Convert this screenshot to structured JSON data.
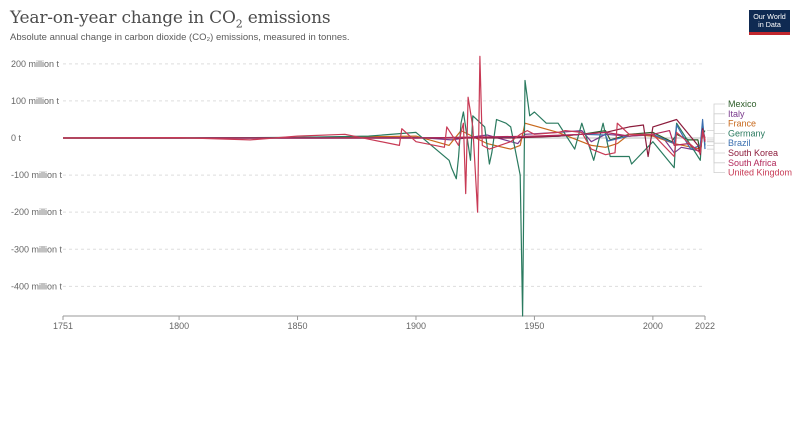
{
  "header": {
    "title_main": "Year-on-year change in CO",
    "title_sub": "2",
    "title_rest": " emissions",
    "subtitle": "Absolute annual change in carbon dioxide (CO₂) emissions, measured in tonnes."
  },
  "logo": {
    "line1": "Our World",
    "line2": "in Data"
  },
  "chart_data": {
    "type": "line",
    "title": "Year-on-year change in CO₂ emissions",
    "subtitle": "Absolute annual change in carbon dioxide (CO₂) emissions, measured in tonnes.",
    "xlabel": "",
    "ylabel": "",
    "xlim": [
      1751,
      2022
    ],
    "ylim": [
      -480000000,
      240000000
    ],
    "x_ticks": [
      1751,
      1800,
      1850,
      1900,
      1950,
      2000,
      2022
    ],
    "y_ticks": [
      {
        "value": 200000000,
        "label": "200 million t"
      },
      {
        "value": 100000000,
        "label": "100 million t"
      },
      {
        "value": 0,
        "label": "0 t"
      },
      {
        "value": -100000000,
        "label": "-100 million t"
      },
      {
        "value": -200000000,
        "label": "-200 million t"
      },
      {
        "value": -300000000,
        "label": "-300 million t"
      },
      {
        "value": -400000000,
        "label": "-400 million t"
      }
    ],
    "grid": true,
    "legend_placement": "right",
    "series": [
      {
        "name": "Mexico",
        "color": "#2e5e2a",
        "values": [
          [
            1751,
            0
          ],
          [
            1900,
            0
          ],
          [
            1920,
            2000000
          ],
          [
            1940,
            3000000
          ],
          [
            1960,
            5000000
          ],
          [
            1970,
            10000000
          ],
          [
            1980,
            20000000
          ],
          [
            1982,
            -5000000
          ],
          [
            1990,
            10000000
          ],
          [
            2000,
            15000000
          ],
          [
            2008,
            -10000000
          ],
          [
            2010,
            10000000
          ],
          [
            2015,
            -5000000
          ],
          [
            2019,
            -5000000
          ],
          [
            2020,
            -40000000
          ],
          [
            2021,
            10000000
          ],
          [
            2022,
            20000000
          ]
        ]
      },
      {
        "name": "Italy",
        "color": "#7a3a8c",
        "values": [
          [
            1751,
            0
          ],
          [
            1860,
            0
          ],
          [
            1900,
            2000000
          ],
          [
            1915,
            -5000000
          ],
          [
            1930,
            8000000
          ],
          [
            1943,
            -15000000
          ],
          [
            1946,
            10000000
          ],
          [
            1960,
            15000000
          ],
          [
            1970,
            20000000
          ],
          [
            1974,
            -10000000
          ],
          [
            1980,
            10000000
          ],
          [
            1990,
            5000000
          ],
          [
            2000,
            8000000
          ],
          [
            2005,
            -5000000
          ],
          [
            2009,
            -40000000
          ],
          [
            2012,
            -25000000
          ],
          [
            2020,
            -35000000
          ],
          [
            2021,
            25000000
          ],
          [
            2022,
            0
          ]
        ]
      },
      {
        "name": "France",
        "color": "#c8691c",
        "values": [
          [
            1751,
            0
          ],
          [
            1820,
            0
          ],
          [
            1860,
            2000000
          ],
          [
            1900,
            5000000
          ],
          [
            1914,
            -20000000
          ],
          [
            1919,
            20000000
          ],
          [
            1930,
            -15000000
          ],
          [
            1940,
            -30000000
          ],
          [
            1944,
            -20000000
          ],
          [
            1946,
            40000000
          ],
          [
            1960,
            15000000
          ],
          [
            1974,
            -20000000
          ],
          [
            1980,
            -25000000
          ],
          [
            1985,
            -15000000
          ],
          [
            1990,
            10000000
          ],
          [
            2000,
            5000000
          ],
          [
            2009,
            -15000000
          ],
          [
            2020,
            -30000000
          ],
          [
            2021,
            25000000
          ],
          [
            2022,
            -5000000
          ]
        ]
      },
      {
        "name": "Germany",
        "color": "#2a7a5f",
        "values": [
          [
            1751,
            0
          ],
          [
            1800,
            0
          ],
          [
            1850,
            2000000
          ],
          [
            1880,
            5000000
          ],
          [
            1900,
            15000000
          ],
          [
            1914,
            -60000000
          ],
          [
            1915,
            -80000000
          ],
          [
            1917,
            -110000000
          ],
          [
            1918,
            -50000000
          ],
          [
            1919,
            40000000
          ],
          [
            1920,
            70000000
          ],
          [
            1923,
            -60000000
          ],
          [
            1924,
            60000000
          ],
          [
            1929,
            30000000
          ],
          [
            1931,
            -70000000
          ],
          [
            1932,
            -40000000
          ],
          [
            1934,
            50000000
          ],
          [
            1938,
            40000000
          ],
          [
            1940,
            30000000
          ],
          [
            1944,
            -100000000
          ],
          [
            1945,
            -480000000
          ],
          [
            1946,
            155000000
          ],
          [
            1948,
            60000000
          ],
          [
            1950,
            70000000
          ],
          [
            1955,
            40000000
          ],
          [
            1960,
            40000000
          ],
          [
            1967,
            -30000000
          ],
          [
            1970,
            40000000
          ],
          [
            1975,
            -60000000
          ],
          [
            1979,
            40000000
          ],
          [
            1982,
            -50000000
          ],
          [
            1990,
            -50000000
          ],
          [
            1991,
            -70000000
          ],
          [
            2000,
            -10000000
          ],
          [
            2009,
            -80000000
          ],
          [
            2010,
            40000000
          ],
          [
            2020,
            -60000000
          ],
          [
            2021,
            40000000
          ],
          [
            2022,
            -20000000
          ]
        ]
      },
      {
        "name": "Brazil",
        "color": "#3b6fb0",
        "values": [
          [
            1751,
            0
          ],
          [
            1900,
            0
          ],
          [
            1940,
            2000000
          ],
          [
            1960,
            5000000
          ],
          [
            1970,
            10000000
          ],
          [
            1980,
            8000000
          ],
          [
            1981,
            -8000000
          ],
          [
            1990,
            5000000
          ],
          [
            2000,
            10000000
          ],
          [
            2009,
            -15000000
          ],
          [
            2010,
            35000000
          ],
          [
            2015,
            -20000000
          ],
          [
            2016,
            -30000000
          ],
          [
            2020,
            -20000000
          ],
          [
            2021,
            50000000
          ],
          [
            2022,
            -30000000
          ]
        ]
      },
      {
        "name": "South Korea",
        "color": "#8c1c3c",
        "values": [
          [
            1751,
            0
          ],
          [
            1940,
            0
          ],
          [
            1953,
            3000000
          ],
          [
            1960,
            5000000
          ],
          [
            1970,
            10000000
          ],
          [
            1980,
            15000000
          ],
          [
            1990,
            30000000
          ],
          [
            1996,
            35000000
          ],
          [
            1998,
            -50000000
          ],
          [
            2000,
            30000000
          ],
          [
            2010,
            50000000
          ],
          [
            2019,
            -20000000
          ],
          [
            2020,
            -45000000
          ],
          [
            2021,
            25000000
          ],
          [
            2022,
            -10000000
          ]
        ]
      },
      {
        "name": "South Africa",
        "color": "#b2295b",
        "values": [
          [
            1751,
            0
          ],
          [
            1900,
            0
          ],
          [
            1920,
            2000000
          ],
          [
            1950,
            5000000
          ],
          [
            1970,
            10000000
          ],
          [
            1980,
            15000000
          ],
          [
            1990,
            5000000
          ],
          [
            2000,
            10000000
          ],
          [
            2007,
            20000000
          ],
          [
            2009,
            -20000000
          ],
          [
            2015,
            -15000000
          ],
          [
            2020,
            -40000000
          ],
          [
            2021,
            15000000
          ],
          [
            2022,
            -10000000
          ]
        ]
      },
      {
        "name": "United Kingdom",
        "color": "#c83a55",
        "values": [
          [
            1751,
            0
          ],
          [
            1800,
            1000000
          ],
          [
            1830,
            -5000000
          ],
          [
            1850,
            5000000
          ],
          [
            1870,
            10000000
          ],
          [
            1893,
            -20000000
          ],
          [
            1894,
            25000000
          ],
          [
            1900,
            -10000000
          ],
          [
            1912,
            -25000000
          ],
          [
            1913,
            30000000
          ],
          [
            1918,
            -20000000
          ],
          [
            1919,
            15000000
          ],
          [
            1920,
            40000000
          ],
          [
            1921,
            -150000000
          ],
          [
            1922,
            110000000
          ],
          [
            1924,
            30000000
          ],
          [
            1926,
            -200000000
          ],
          [
            1927,
            220000000
          ],
          [
            1928,
            -20000000
          ],
          [
            1931,
            -30000000
          ],
          [
            1940,
            -10000000
          ],
          [
            1944,
            10000000
          ],
          [
            1947,
            20000000
          ],
          [
            1950,
            10000000
          ],
          [
            1960,
            15000000
          ],
          [
            1963,
            20000000
          ],
          [
            1970,
            15000000
          ],
          [
            1974,
            -30000000
          ],
          [
            1980,
            -45000000
          ],
          [
            1984,
            -40000000
          ],
          [
            1985,
            40000000
          ],
          [
            1990,
            10000000
          ],
          [
            2000,
            10000000
          ],
          [
            2009,
            -50000000
          ],
          [
            2010,
            15000000
          ],
          [
            2020,
            -40000000
          ],
          [
            2021,
            20000000
          ],
          [
            2022,
            -5000000
          ]
        ]
      }
    ]
  }
}
